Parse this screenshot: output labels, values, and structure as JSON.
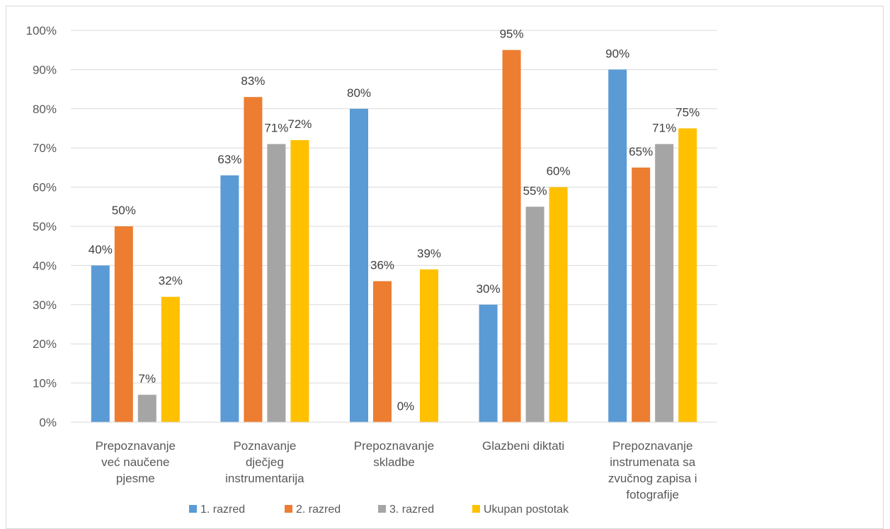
{
  "chart_data": {
    "type": "bar",
    "categories": [
      [
        "Prepoznavanje",
        "već naučene",
        "pjesme"
      ],
      [
        "Poznavanje",
        "dječjeg",
        "instrumentarija"
      ],
      [
        "Prepoznavanje",
        "skladbe"
      ],
      [
        "Glazbeni diktati"
      ],
      [
        "Prepoznavanje",
        "instrumenata sa",
        "zvučnog zapisa i",
        "fotografije"
      ]
    ],
    "series": [
      {
        "name": "1. razred",
        "color": "#5b9bd5",
        "values": [
          40,
          63,
          80,
          30,
          90
        ]
      },
      {
        "name": "2. razred",
        "color": "#ed7d31",
        "values": [
          50,
          83,
          36,
          95,
          65
        ]
      },
      {
        "name": "3. razred",
        "color": "#a5a5a5",
        "values": [
          7,
          71,
          0,
          55,
          71
        ]
      },
      {
        "name": "Ukupan postotak",
        "color": "#ffc000",
        "values": [
          32,
          72,
          39,
          60,
          75
        ]
      }
    ],
    "data_labels": [
      [
        "40%",
        "63%",
        "80%",
        "30%",
        "90%"
      ],
      [
        "50%",
        "83%",
        "36%",
        "95%",
        "65%"
      ],
      [
        "7%",
        "71%",
        "0%",
        "55%",
        "71%"
      ],
      [
        "32%",
        "72%",
        "39%",
        "60%",
        "75%"
      ]
    ],
    "y_ticks": [
      "0%",
      "10%",
      "20%",
      "30%",
      "40%",
      "50%",
      "60%",
      "70%",
      "80%",
      "90%",
      "100%"
    ],
    "ylim": [
      0,
      100
    ],
    "grid": true,
    "legend": "bottom",
    "title": "",
    "xlabel": "",
    "ylabel": ""
  }
}
